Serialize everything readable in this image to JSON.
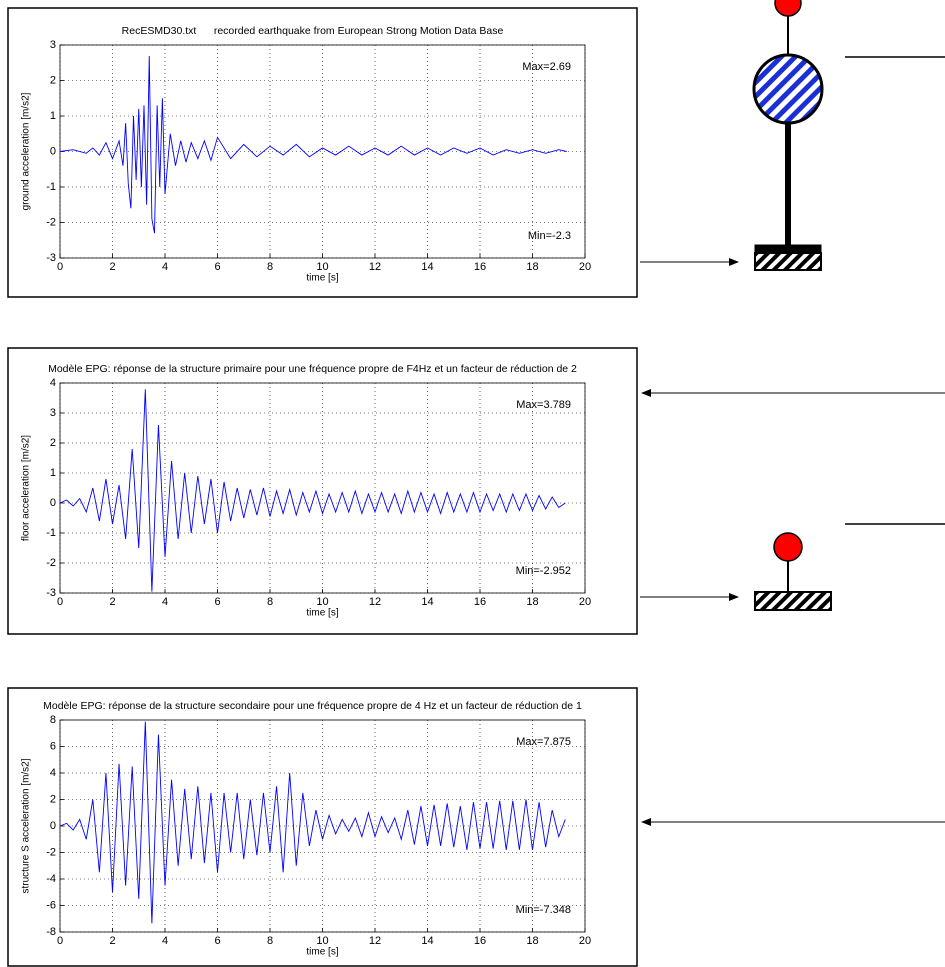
{
  "chart_data": [
    {
      "type": "line",
      "title": "RecESMD30.txt      recorded earthquake from European Strong Motion Data Base",
      "x_label": "time [s]",
      "y_label": "ground acceleration [m/s2]",
      "max_label": "Max=2.69",
      "min_label": "Min=-2.3",
      "xlim": [
        0,
        20
      ],
      "xticks": [
        0,
        2,
        4,
        6,
        8,
        10,
        12,
        14,
        16,
        18,
        20
      ],
      "ylim": [
        -3,
        3
      ],
      "yticks": [
        -3,
        -2,
        -1,
        0,
        1,
        2,
        3
      ],
      "grid": true,
      "x": [
        0,
        0.5,
        1,
        1.25,
        1.5,
        1.75,
        2,
        2.25,
        2.4,
        2.5,
        2.6,
        2.7,
        2.8,
        2.9,
        3.0,
        3.1,
        3.2,
        3.3,
        3.4,
        3.5,
        3.6,
        3.7,
        3.8,
        3.9,
        4.0,
        4.2,
        4.4,
        4.6,
        4.8,
        5,
        5.25,
        5.5,
        5.75,
        6,
        6.5,
        7,
        7.5,
        8,
        8.5,
        9,
        9.5,
        10,
        10.5,
        11,
        11.5,
        12,
        12.5,
        13,
        13.5,
        14,
        14.5,
        15,
        15.5,
        16,
        16.5,
        17,
        17.5,
        18,
        18.5,
        19,
        19.3
      ],
      "series": [
        {
          "color": "#0000ff",
          "values": [
            0,
            0.05,
            -0.05,
            0.1,
            -0.1,
            0.25,
            -0.2,
            0.3,
            -0.4,
            0.8,
            -0.9,
            -1.6,
            1.0,
            -0.8,
            1.2,
            -1.0,
            1.3,
            -1.5,
            2.69,
            -1.9,
            -2.3,
            1.3,
            -1.0,
            1.5,
            -1.2,
            0.5,
            -0.4,
            0.3,
            -0.3,
            0.25,
            -0.2,
            0.3,
            -0.25,
            0.4,
            -0.2,
            0.2,
            -0.15,
            0.15,
            -0.1,
            0.2,
            -0.15,
            0.1,
            -0.1,
            0.15,
            -0.1,
            0.1,
            -0.1,
            0.15,
            -0.1,
            0.1,
            -0.1,
            0.1,
            -0.05,
            0.1,
            -0.1,
            0.05,
            -0.05,
            0.05,
            -0.05,
            0.05,
            0
          ]
        }
      ]
    },
    {
      "type": "line",
      "title": "Modèle EPG: réponse de la structure primaire pour une fréquence propre de F4Hz et un facteur de réduction de 2",
      "x_label": "time [s]",
      "y_label": "floor acceleration [m/s2]",
      "max_label": "Max=3.789",
      "min_label": "Min=-2.952",
      "xlim": [
        0,
        20
      ],
      "xticks": [
        0,
        2,
        4,
        6,
        8,
        10,
        12,
        14,
        16,
        18,
        20
      ],
      "ylim": [
        -3,
        4
      ],
      "yticks": [
        -3,
        -2,
        -1,
        0,
        1,
        2,
        3,
        4
      ],
      "grid": true,
      "x": [
        0,
        0.25,
        0.5,
        0.75,
        1,
        1.25,
        1.5,
        1.75,
        2,
        2.25,
        2.5,
        2.75,
        3,
        3.25,
        3.5,
        3.75,
        4,
        4.25,
        4.5,
        4.75,
        5,
        5.25,
        5.5,
        5.75,
        6,
        6.25,
        6.5,
        6.75,
        7,
        7.25,
        7.5,
        7.75,
        8,
        8.25,
        8.5,
        8.75,
        9,
        9.25,
        9.5,
        9.75,
        10,
        10.25,
        10.5,
        10.75,
        11,
        11.25,
        11.5,
        11.75,
        12,
        12.25,
        12.5,
        12.75,
        13,
        13.25,
        13.5,
        13.75,
        14,
        14.25,
        14.5,
        14.75,
        15,
        15.25,
        15.5,
        15.75,
        16,
        16.25,
        16.5,
        16.75,
        17,
        17.25,
        17.5,
        17.75,
        18,
        18.25,
        18.5,
        18.75,
        19,
        19.25
      ],
      "series": [
        {
          "color": "#0000ff",
          "values": [
            0,
            0.1,
            -0.1,
            0.15,
            -0.3,
            0.5,
            -0.6,
            0.8,
            -0.7,
            0.6,
            -1.2,
            1.8,
            -1.5,
            3.789,
            -2.952,
            2.6,
            -1.8,
            1.4,
            -1.2,
            1.0,
            -1.0,
            0.9,
            -0.7,
            0.8,
            -1.0,
            0.7,
            -0.6,
            0.5,
            -0.5,
            0.45,
            -0.4,
            0.5,
            -0.45,
            0.4,
            -0.35,
            0.45,
            -0.4,
            0.35,
            -0.3,
            0.4,
            -0.35,
            0.3,
            -0.3,
            0.35,
            -0.3,
            0.4,
            -0.35,
            0.3,
            -0.3,
            0.35,
            -0.3,
            0.3,
            -0.35,
            0.4,
            -0.3,
            0.35,
            -0.3,
            0.3,
            -0.35,
            0.35,
            -0.3,
            0.3,
            -0.3,
            0.35,
            -0.3,
            0.3,
            -0.25,
            0.3,
            -0.3,
            0.3,
            -0.25,
            0.3,
            -0.25,
            0.25,
            -0.2,
            0.2,
            -0.15,
            0
          ]
        }
      ]
    },
    {
      "type": "line",
      "title": "Modèle EPG: réponse de la structure secondaire pour une fréquence propre de 4 Hz et un facteur de réduction de 1",
      "x_label": "time [s]",
      "y_label": "structure S acceleration [m/s2]",
      "max_label": "Max=7.875",
      "min_label": "Min=-7.348",
      "xlim": [
        0,
        20
      ],
      "xticks": [
        0,
        2,
        4,
        6,
        8,
        10,
        12,
        14,
        16,
        18,
        20
      ],
      "ylim": [
        -8,
        8
      ],
      "yticks": [
        -8,
        -6,
        -4,
        -2,
        0,
        2,
        4,
        6,
        8
      ],
      "grid": true,
      "x": [
        0,
        0.25,
        0.5,
        0.75,
        1,
        1.25,
        1.5,
        1.75,
        2,
        2.25,
        2.5,
        2.75,
        3,
        3.25,
        3.5,
        3.75,
        4,
        4.25,
        4.5,
        4.75,
        5,
        5.25,
        5.5,
        5.75,
        6,
        6.25,
        6.5,
        6.75,
        7,
        7.25,
        7.5,
        7.75,
        8,
        8.25,
        8.5,
        8.75,
        9,
        9.25,
        9.5,
        9.75,
        10,
        10.25,
        10.5,
        10.75,
        11,
        11.25,
        11.5,
        11.75,
        12,
        12.25,
        12.5,
        12.75,
        13,
        13.25,
        13.5,
        13.75,
        14,
        14.25,
        14.5,
        14.75,
        15,
        15.25,
        15.5,
        15.75,
        16,
        16.25,
        16.5,
        16.75,
        17,
        17.25,
        17.5,
        17.75,
        18,
        18.25,
        18.5,
        18.75,
        19,
        19.25
      ],
      "series": [
        {
          "color": "#0000ff",
          "values": [
            0,
            0.2,
            -0.3,
            0.5,
            -1.0,
            2.0,
            -3.5,
            4.0,
            -5.0,
            4.7,
            -4.5,
            4.5,
            -5.5,
            7.875,
            -7.348,
            6.9,
            -4.5,
            3.5,
            -3.0,
            2.8,
            -2.5,
            3.0,
            -2.8,
            2.5,
            -3.5,
            2.5,
            -2.0,
            2.5,
            -2.5,
            2.0,
            -2.2,
            2.5,
            -2.0,
            3.0,
            -3.5,
            4.0,
            -3.0,
            2.5,
            -1.5,
            1.2,
            -1.0,
            0.8,
            -0.6,
            0.5,
            -0.4,
            0.6,
            -0.8,
            1.0,
            -0.8,
            0.7,
            -0.5,
            0.6,
            -1.0,
            1.2,
            -1.4,
            1.5,
            -1.5,
            1.6,
            -1.5,
            1.7,
            -1.6,
            1.5,
            -1.8,
            1.8,
            -1.7,
            1.8,
            -1.7,
            1.9,
            -1.8,
            1.9,
            -1.8,
            2.0,
            -1.8,
            1.8,
            -1.6,
            1.2,
            -0.8,
            0.5
          ]
        }
      ]
    }
  ]
}
